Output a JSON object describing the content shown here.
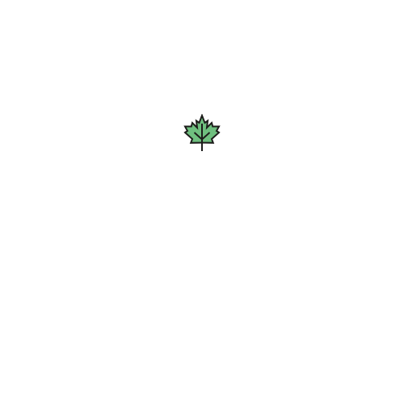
{
  "icon": {
    "name": "maple-leaf-icon",
    "fill_color": "#6fbf7f",
    "stroke_color": "#1d1d1b"
  },
  "background_color": "#ffffff"
}
